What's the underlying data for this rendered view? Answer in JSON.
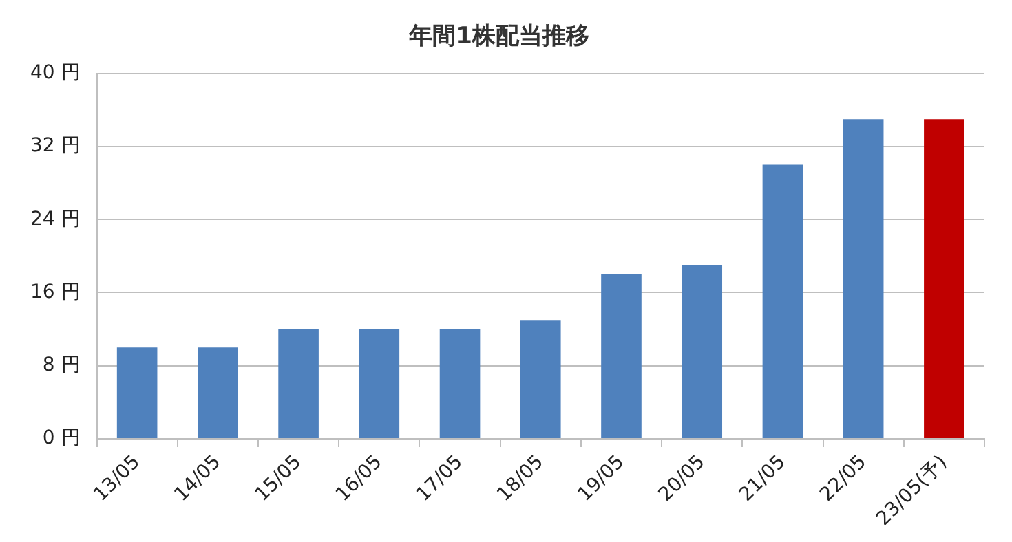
{
  "chart_data": {
    "type": "bar",
    "title": "年間1株配当推移",
    "categories": [
      "13/05",
      "14/05",
      "15/05",
      "16/05",
      "17/05",
      "18/05",
      "19/05",
      "20/05",
      "21/05",
      "22/05",
      "23/05(予)"
    ],
    "values": [
      10,
      10,
      12,
      12,
      12,
      13,
      18,
      19,
      30,
      35,
      35
    ],
    "colors": [
      "#4f81bd",
      "#4f81bd",
      "#4f81bd",
      "#4f81bd",
      "#4f81bd",
      "#4f81bd",
      "#4f81bd",
      "#4f81bd",
      "#4f81bd",
      "#4f81bd",
      "#c00000"
    ],
    "ylim": [
      0,
      40
    ],
    "yticks": [
      {
        "value": 0,
        "label": "0 円"
      },
      {
        "value": 8,
        "label": "8 円"
      },
      {
        "value": 16,
        "label": "16 円"
      },
      {
        "value": 24,
        "label": "24 円"
      },
      {
        "value": 32,
        "label": "32 円"
      },
      {
        "value": 40,
        "label": "40 円"
      }
    ],
    "grid": "y",
    "legend": false
  }
}
